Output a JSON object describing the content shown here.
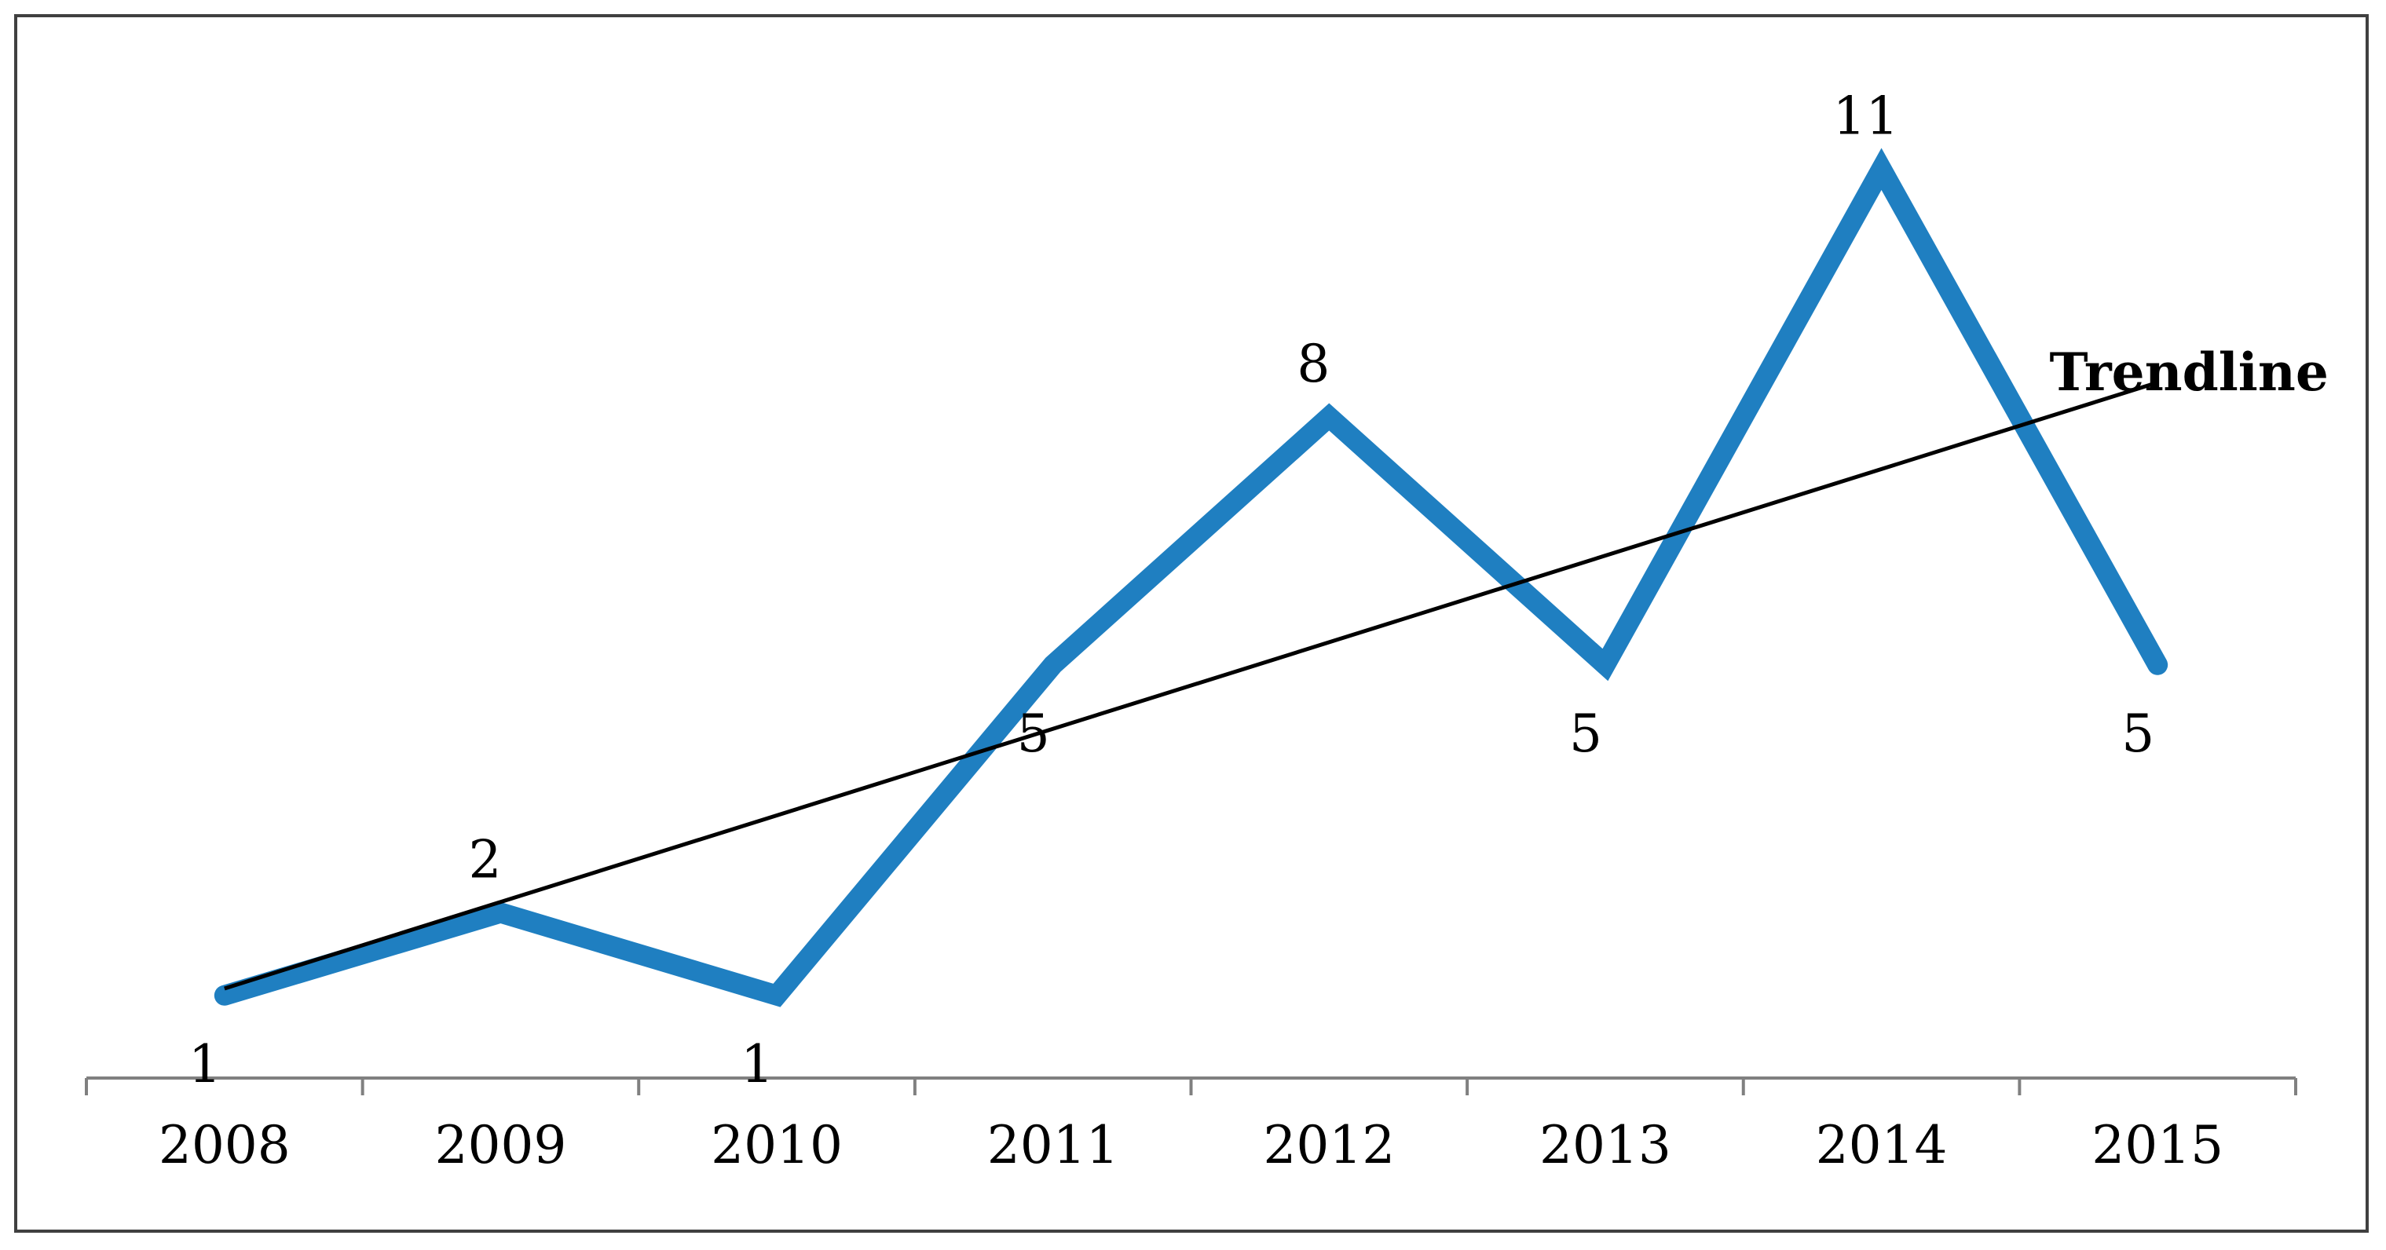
{
  "chart_data": {
    "type": "line",
    "categories": [
      "2008",
      "2009",
      "2010",
      "2011",
      "2012",
      "2013",
      "2014",
      "2015"
    ],
    "series": [
      {
        "values": [
          1,
          2,
          1,
          5,
          8,
          5,
          11,
          5
        ],
        "color": "#1f7fc1"
      }
    ],
    "data_labels": [
      "1",
      "2",
      "1",
      "5",
      "8",
      "5",
      "11",
      "5"
    ],
    "trendline": {
      "label": "Trendline",
      "type": "linear",
      "color": "#000000"
    },
    "title": "",
    "xlabel": "",
    "ylabel": "",
    "ylim": [
      0,
      12
    ],
    "grid": false,
    "legend": "none",
    "y_axis_visible": false
  }
}
